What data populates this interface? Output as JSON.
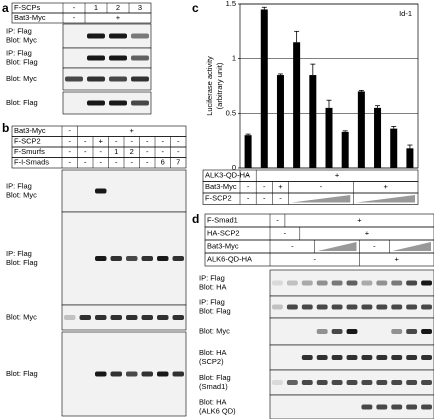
{
  "panels": [
    {
      "label": "a",
      "conditions": [
        {
          "name": "F-SCPs",
          "cells": [
            "-",
            "1",
            "2",
            "3"
          ]
        },
        {
          "name": "Bat3-Myc",
          "cells": [
            "-",
            "+"
          ]
        }
      ],
      "blots": [
        [
          "IP: Flag",
          "Blot: Myc"
        ],
        [
          "IP: Flag",
          "Blot: Flag"
        ],
        [
          "Blot: Myc"
        ],
        [
          "Blot: Flag"
        ]
      ]
    },
    {
      "label": "b",
      "conditions": [
        {
          "name": "Bat3-Myc",
          "cells": [
            "-",
            "+"
          ]
        },
        {
          "name": "F-SCP2",
          "cells": [
            "-",
            "-",
            "+",
            "-",
            "-",
            "-",
            "-",
            "-"
          ]
        },
        {
          "name": "F-Smurfs",
          "cells": [
            "-",
            "-",
            "-",
            "1",
            "2",
            "-",
            "-",
            "-"
          ]
        },
        {
          "name": "F-I-Smads",
          "cells": [
            "-",
            "-",
            "-",
            "-",
            "-",
            "-",
            "6",
            "7"
          ]
        }
      ],
      "blots": [
        [
          "IP: Flag",
          "Blot: Myc"
        ],
        [
          "IP: Flag",
          "Blot: Flag"
        ],
        [
          "Blot: Myc"
        ],
        [
          "Blot: Flag"
        ]
      ]
    },
    {
      "label": "c",
      "conditions": [
        {
          "name": "ALK3-QD-HA",
          "cells": [
            "-",
            "+"
          ]
        },
        {
          "name": "Bat3-Myc",
          "cells": [
            "-",
            "-",
            "+",
            "-",
            "+"
          ]
        },
        {
          "name": "F-SCP2",
          "cells": [
            "-",
            "-",
            "-"
          ]
        }
      ]
    },
    {
      "label": "d",
      "conditions": [
        {
          "name": "F-Smad1",
          "cells": [
            "-",
            "+"
          ]
        },
        {
          "name": "HA-SCP2",
          "cells": [
            "-",
            "+"
          ]
        },
        {
          "name": "Bat3-Myc",
          "cells": [
            "-",
            "-"
          ]
        },
        {
          "name": "ALK6-QD-HA",
          "cells": [
            "-",
            "+"
          ]
        }
      ],
      "blots": [
        [
          "IP: Flag",
          "Blot: HA"
        ],
        [
          "IP: Flag",
          "Blot: Flag"
        ],
        [
          "Blot: Myc"
        ],
        [
          "Blot: HA",
          "(SCP2)"
        ],
        [
          "Blot: Flag",
          "(Smad1)"
        ],
        [
          "Blot: HA",
          "(ALK6 QD)"
        ]
      ]
    }
  ],
  "chart_data": {
    "type": "bar",
    "title": "Id-1",
    "ylabel": [
      "Luciferase activity",
      "(arbitrary unit)"
    ],
    "values": [
      0.3,
      1.45,
      0.85,
      1.15,
      0.85,
      0.55,
      0.33,
      0.7,
      0.55,
      0.36,
      0.18
    ],
    "errors": [
      0.01,
      0.02,
      0.01,
      0.1,
      0.1,
      0.07,
      0.01,
      0.01,
      0.02,
      0.02,
      0.03
    ],
    "color": "#000000",
    "ylim": [
      0,
      1.5
    ],
    "yticks": [
      0,
      0.5,
      1,
      1.5
    ],
    "grid": true
  }
}
